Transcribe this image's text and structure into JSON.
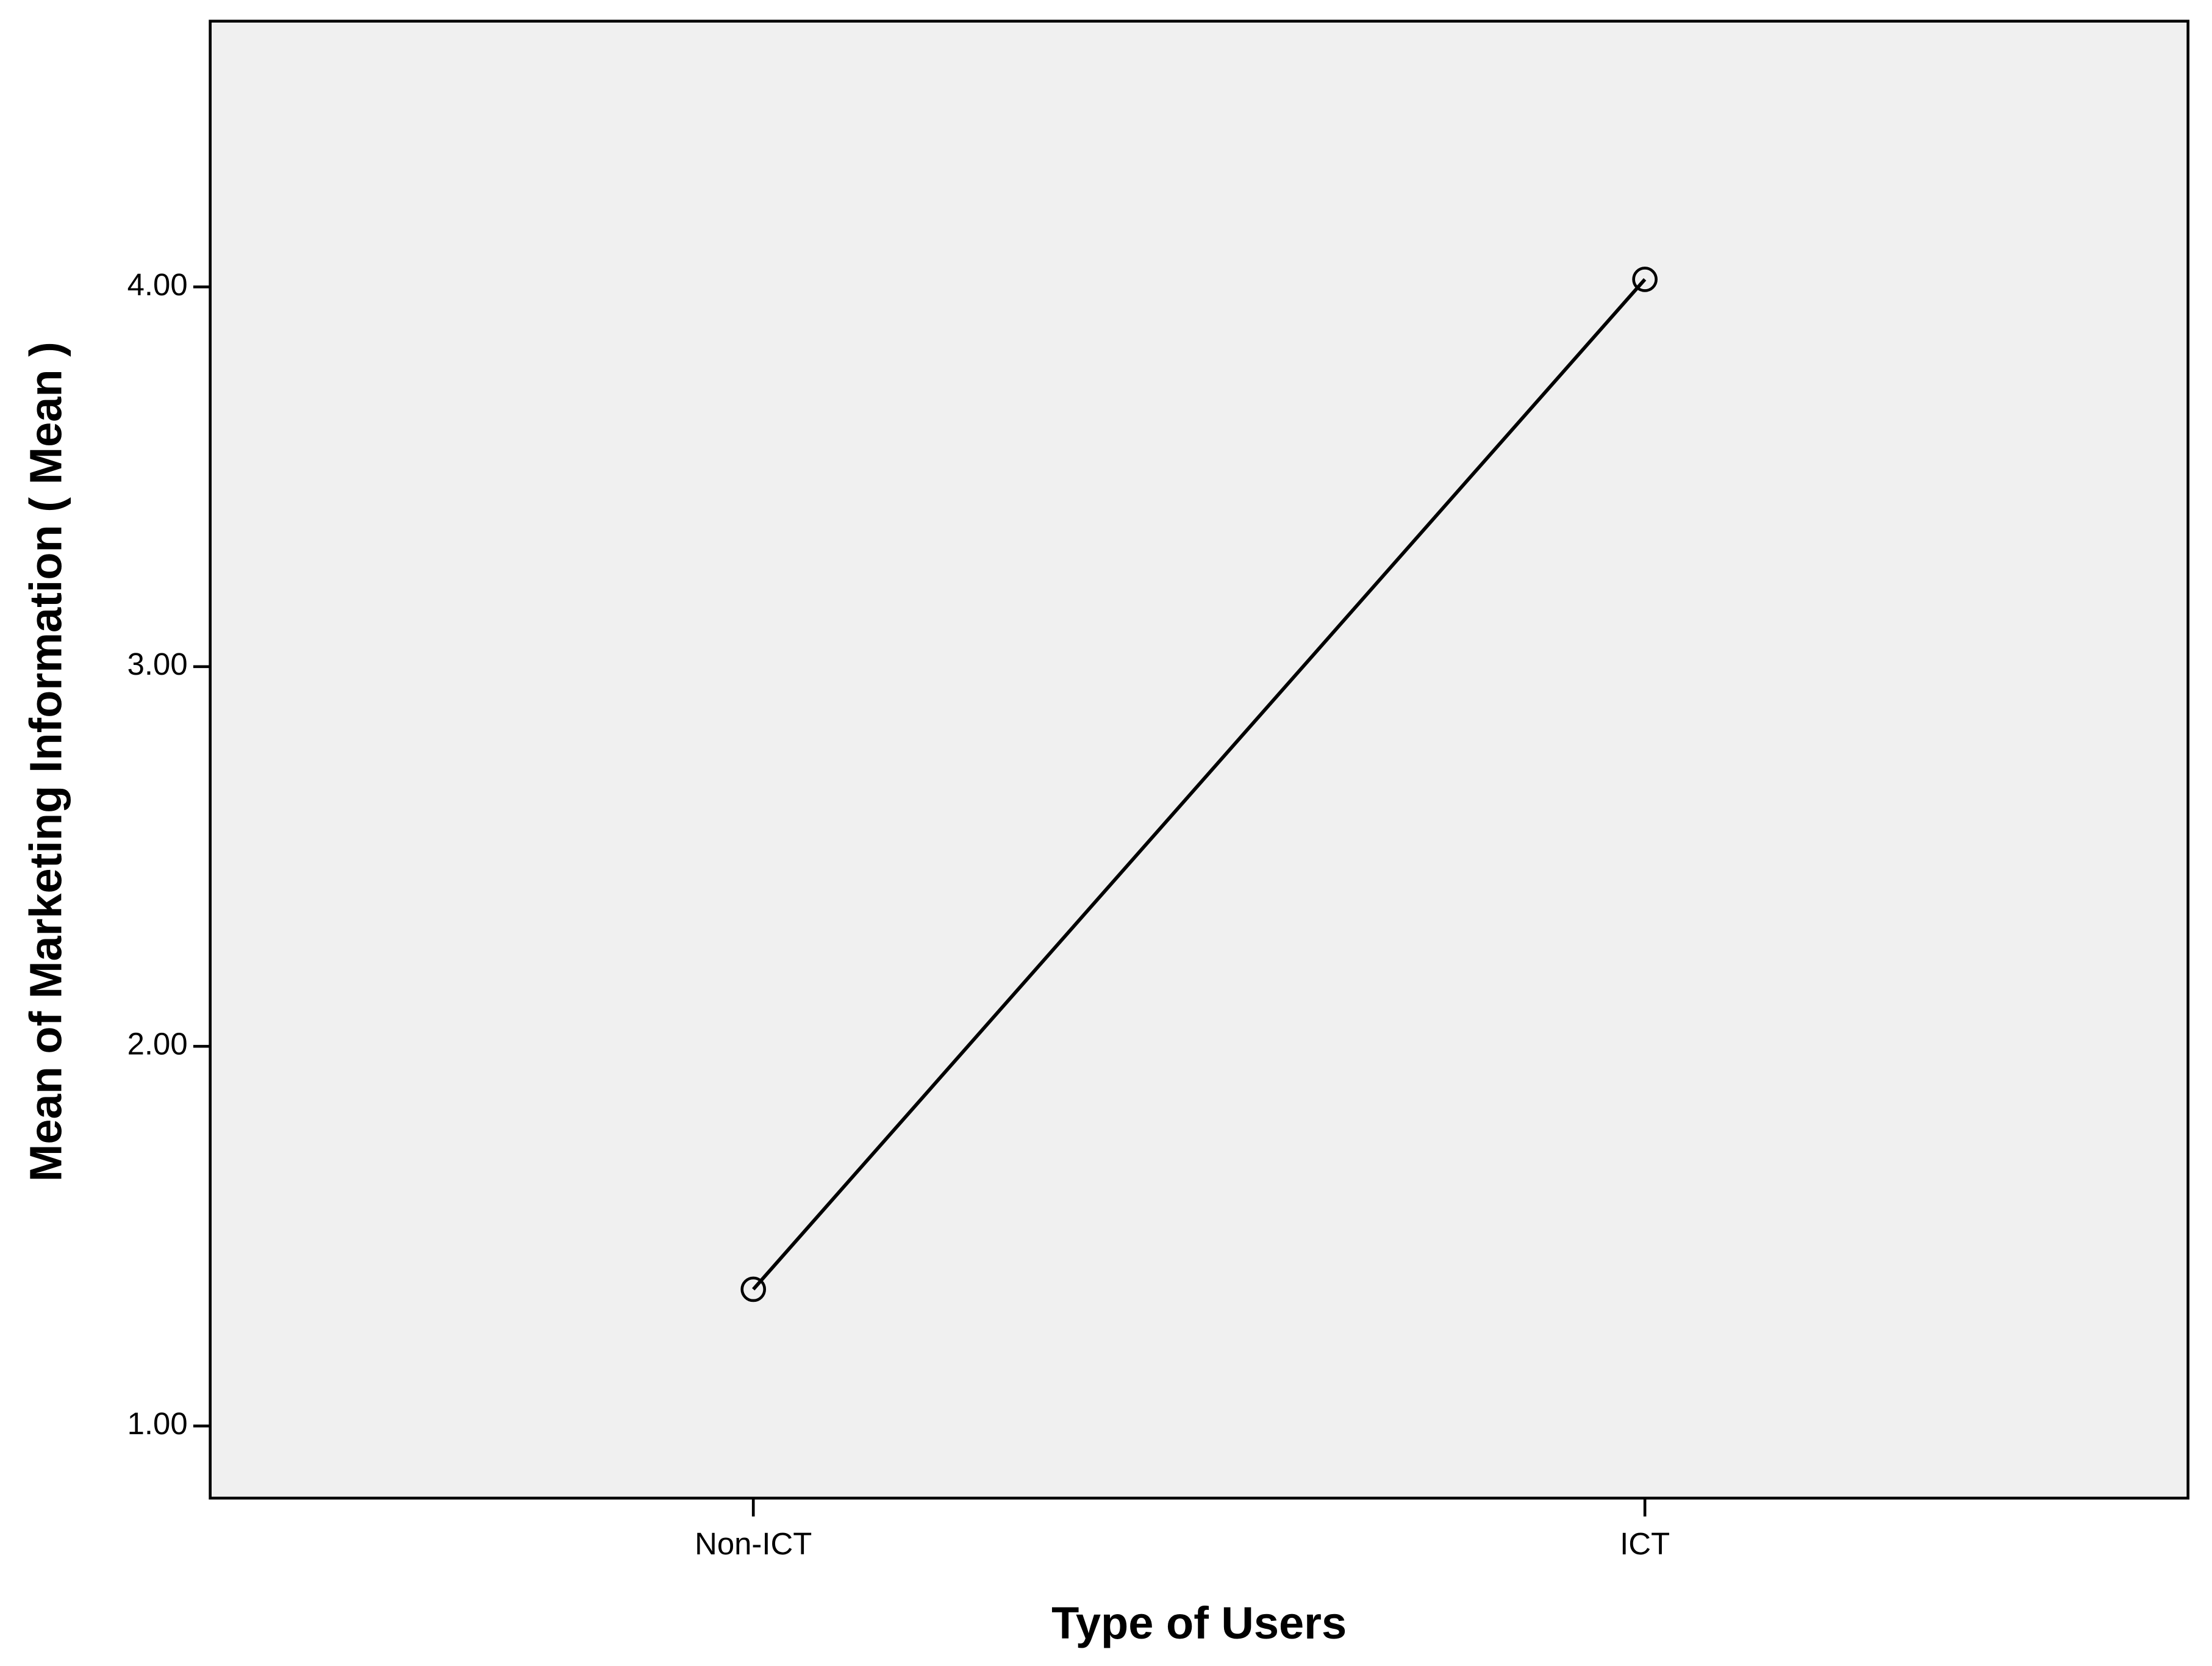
{
  "chart_data": {
    "type": "line",
    "x_label": "Type of Users",
    "y_label": "Mean of Marketing Information ( Mean )",
    "categories": [
      "Non-ICT",
      "ICT"
    ],
    "values": [
      1.36,
      4.02
    ],
    "color": "#000000",
    "ylim": [
      0.81,
      4.7
    ],
    "yticks": [
      {
        "value": 1,
        "label": "1.00"
      },
      {
        "value": 2,
        "label": "2.00"
      },
      {
        "value": 3,
        "label": "3.00"
      },
      {
        "value": 4,
        "label": "4.00"
      }
    ],
    "grid": false
  }
}
